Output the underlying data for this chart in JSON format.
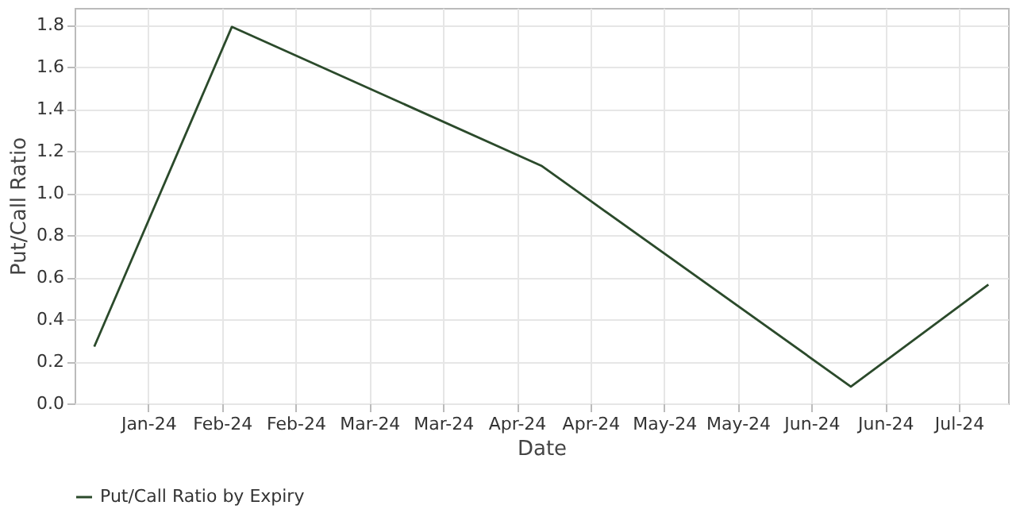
{
  "chart_data": {
    "type": "line",
    "xlabel": "Date",
    "ylabel": "Put/Call Ratio",
    "x": [
      "2024-01-09",
      "2024-02-06",
      "2024-04-09",
      "2024-06-11",
      "2024-07-09"
    ],
    "series": [
      {
        "name": "Put/Call Ratio by Expiry",
        "color": "#2b4a2b",
        "values": [
          0.27,
          1.79,
          1.13,
          0.08,
          0.565
        ]
      }
    ],
    "xlim": [
      "2024-01-05",
      "2024-07-13"
    ],
    "xticks": [
      {
        "value": "2024-01-20",
        "label": "Jan-24"
      },
      {
        "value": "2024-02-04",
        "label": "Feb-24"
      },
      {
        "value": "2024-02-19",
        "label": "Feb-24"
      },
      {
        "value": "2024-03-05",
        "label": "Mar-24"
      },
      {
        "value": "2024-03-20",
        "label": "Mar-24"
      },
      {
        "value": "2024-04-04",
        "label": "Apr-24"
      },
      {
        "value": "2024-04-19",
        "label": "Apr-24"
      },
      {
        "value": "2024-05-04",
        "label": "May-24"
      },
      {
        "value": "2024-05-19",
        "label": "May-24"
      },
      {
        "value": "2024-06-03",
        "label": "Jun-24"
      },
      {
        "value": "2024-06-18",
        "label": "Jun-24"
      },
      {
        "value": "2024-07-03",
        "label": "Jul-24"
      }
    ],
    "ylim": [
      0,
      1.88
    ],
    "yticks": [
      {
        "value": 0,
        "label": "0.0"
      },
      0.2,
      0.4,
      0.6,
      0.8,
      {
        "value": 1,
        "label": "1.0"
      },
      1.2,
      1.4,
      1.6,
      1.8
    ],
    "grid": true,
    "legend": "bottom",
    "marker": "none",
    "line_style": "solid"
  }
}
